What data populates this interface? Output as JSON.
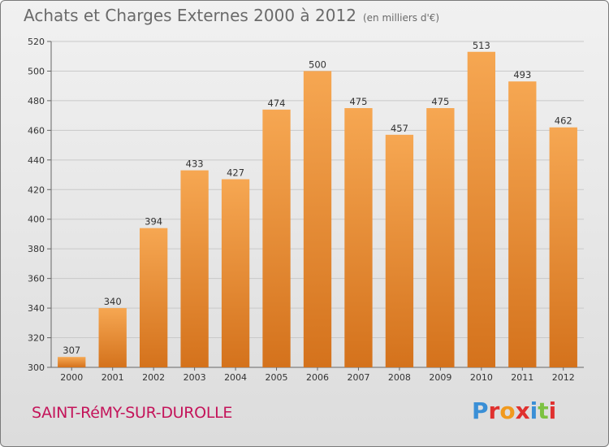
{
  "header": {
    "title": "Achats et Charges Externes 2000 à 2012",
    "unit": "(en milliers d'€)"
  },
  "footer": {
    "town": "SAINT-RéMY-SUR-DUROLLE",
    "brand": "Proxiti"
  },
  "colors": {
    "bar_top": "#f6a752",
    "bar_bottom": "#d4721c",
    "brand_letters": [
      "#3a8fd6",
      "#e0312f",
      "#f19a1e",
      "#e0312f",
      "#3a8fd6",
      "#7cc242",
      "#e0312f"
    ]
  },
  "chart_data": {
    "type": "bar",
    "title": "Achats et Charges Externes 2000 à 2012",
    "subtitle": "(en milliers d'€)",
    "categories": [
      "2000",
      "2001",
      "2002",
      "2003",
      "2004",
      "2005",
      "2006",
      "2007",
      "2008",
      "2009",
      "2010",
      "2011",
      "2012"
    ],
    "values": [
      307,
      340,
      394,
      433,
      427,
      474,
      500,
      475,
      457,
      475,
      513,
      493,
      462
    ],
    "ylim": [
      300,
      520
    ],
    "yticks": [
      300,
      320,
      340,
      360,
      380,
      400,
      420,
      440,
      460,
      480,
      500,
      520
    ],
    "grid": true,
    "xlabel": "",
    "ylabel": ""
  }
}
